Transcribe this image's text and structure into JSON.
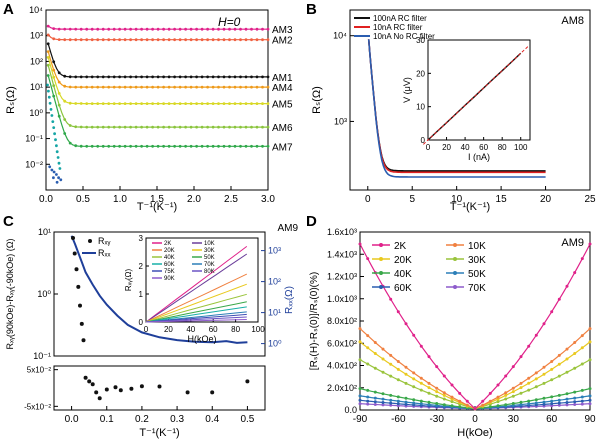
{
  "chart_data": [
    {
      "panel": "A",
      "type": "scatter",
      "annotation": "H=0",
      "xlabel": "T⁻¹(K⁻¹)",
      "ylabel": "Rₛ(Ω)",
      "xlim": [
        0,
        3
      ],
      "ylim_log10": [
        -3,
        4
      ],
      "yscale": "log",
      "xticks": [
        0.0,
        0.5,
        1.0,
        1.5,
        2.0,
        2.5,
        3.0
      ],
      "xtick_labels": [
        "0.0",
        "0.5",
        "1.0",
        "1.5",
        "2.0",
        "2.5",
        "3.0"
      ],
      "yticks_log10": [
        -2,
        -1,
        0,
        1,
        2,
        3,
        4
      ],
      "ytick_labels": [
        "10⁻²",
        "10⁻¹",
        "10⁰",
        "10¹",
        "10²",
        "10³",
        "10⁴"
      ],
      "series": [
        {
          "name": "AM3",
          "color": "#e0218a",
          "plateau": 1800,
          "peak": 3000
        },
        {
          "name": "AM2",
          "color": "#f06040",
          "plateau": 700,
          "peak": 1500
        },
        {
          "name": "AM1",
          "color": "#111111",
          "plateau": 25,
          "peak": 1000
        },
        {
          "name": "AM4",
          "color": "#ee9a1a",
          "plateau": 10,
          "peak": 500
        },
        {
          "name": "AM5",
          "color": "#d8d826",
          "plateau": 2.3,
          "peak": 300
        },
        {
          "name": "AM6",
          "color": "#8ac43c",
          "plateau": 0.28,
          "peak": 150
        },
        {
          "name": "AM7",
          "color": "#2fa84a",
          "plateau": 0.05,
          "peak": 60
        }
      ],
      "extra_series": [
        {
          "color": "#16a5a5",
          "description": "cyan steep drop"
        },
        {
          "color": "#2a5db0",
          "description": "blue points near zero"
        }
      ]
    },
    {
      "panel": "B",
      "type": "line",
      "annotation": "AM8",
      "xlabel": "T⁻¹(K⁻¹)",
      "ylabel": "Rₛ(Ω)",
      "xlim": [
        -2,
        25
      ],
      "ylim_log10": [
        2.2,
        4.3
      ],
      "yscale": "log",
      "xticks": [
        0,
        5,
        10,
        15,
        20,
        25
      ],
      "yticks_log10": [
        3,
        4
      ],
      "ytick_labels": [
        "10³",
        "10⁴"
      ],
      "legend_position": "top-left",
      "series": [
        {
          "name": "100nA RC filter",
          "color": "#111111",
          "plateau": 265
        },
        {
          "name": "10nA RC filter",
          "color": "#e02020",
          "plateau": 255
        },
        {
          "name": "10nA No RC filter",
          "color": "#2a5db0",
          "plateau": 225
        }
      ],
      "inset": {
        "xlabel": "I (nA)",
        "ylabel": "V (μV)",
        "xlim": [
          0,
          110
        ],
        "ylim": [
          0,
          30
        ],
        "xticks": [
          0,
          20,
          40,
          60,
          80,
          100
        ],
        "yticks": [
          0,
          10,
          20,
          30
        ],
        "points": {
          "x": [
            0,
            10,
            20,
            30,
            40,
            50,
            60,
            70,
            80,
            90,
            100
          ],
          "y": [
            0,
            2.6,
            5.2,
            7.8,
            10.4,
            13.0,
            15.6,
            18.2,
            20.8,
            23.4,
            26.0
          ]
        },
        "fit_color": "#e02020"
      }
    },
    {
      "panel": "C",
      "type": "scatter",
      "annotation": "AM9",
      "xlabel": "T⁻¹(K⁻¹)",
      "ylabel_left": "Rₓᵧ(90kOe)-Rₓᵧ(-90kOe) (Ω)",
      "ylabel_right": "Rₓₓ(Ω)",
      "xlim": [
        -0.05,
        0.55
      ],
      "xticks": [
        0.0,
        0.1,
        0.2,
        0.3,
        0.4,
        0.5
      ],
      "left_ylim_log10": [
        -1,
        1
      ],
      "left_yticks_log10": [
        -1,
        0,
        1
      ],
      "left_ytick_labels": [
        "10⁻¹",
        "10⁰",
        "10¹"
      ],
      "right_ylim_log10": [
        -0.4,
        3.6
      ],
      "right_yticks_log10": [
        0,
        1,
        2,
        3
      ],
      "right_ytick_labels": [
        "10⁰",
        "10¹",
        "10²",
        "10³"
      ],
      "legend": [
        {
          "name": "Rₓᵧ",
          "marker": "dot",
          "color": "#111111"
        },
        {
          "name": "Rₓₓ",
          "marker": "line",
          "color": "#1f3f9a"
        }
      ],
      "rxy_points": {
        "x": [
          0.004,
          0.009,
          0.014,
          0.019,
          0.024,
          0.029,
          0.034
        ],
        "y": [
          8.0,
          4.5,
          2.5,
          1.3,
          0.65,
          0.33,
          0.18
        ]
      },
      "rxx_curve": {
        "x": [
          0.0,
          0.01,
          0.02,
          0.03,
          0.04,
          0.06,
          0.08,
          0.1,
          0.13,
          0.16,
          0.2,
          0.25,
          0.3,
          0.35,
          0.4,
          0.44,
          0.47,
          0.5
        ],
        "y": [
          3000,
          1600,
          800,
          400,
          200,
          80,
          35,
          18,
          8,
          4,
          2.3,
          1.6,
          1.3,
          1.15,
          1.1,
          1.2,
          1.05,
          1.1
        ]
      },
      "bottom_panel": {
        "ylim": [
          -0.06,
          0.06
        ],
        "yticks": [
          -0.05,
          0.05
        ],
        "ytick_labels": [
          "-5x10⁻²",
          "5x10⁻²"
        ],
        "points": {
          "x": [
            0.04,
            0.05,
            0.06,
            0.07,
            0.08,
            0.1,
            0.125,
            0.14,
            0.17,
            0.2,
            0.25,
            0.33,
            0.4,
            0.5
          ],
          "y": [
            0.028,
            0.018,
            0.01,
            -0.012,
            -0.028,
            -0.004,
            0.002,
            -0.006,
            -0.002,
            0.005,
            0.004,
            -0.012,
            -0.012,
            0.018
          ]
        }
      },
      "inset": {
        "xlabel": "H(kOe)",
        "ylabel": "Rₓᵧ(Ω)",
        "xlim": [
          0,
          100
        ],
        "ylim": [
          0,
          3
        ],
        "xticks": [
          0,
          20,
          40,
          60,
          80,
          100
        ],
        "yticks": [
          0,
          1,
          2,
          3
        ],
        "series": [
          {
            "name": "2K",
            "color": "#e0218a",
            "slope": 0.03
          },
          {
            "name": "10K",
            "color": "#6a3d9a",
            "slope": 0.027
          },
          {
            "name": "20K",
            "color": "#f08040",
            "slope": 0.019
          },
          {
            "name": "30K",
            "color": "#e9c91f",
            "slope": 0.015
          },
          {
            "name": "40K",
            "color": "#9ac43c",
            "slope": 0.011
          },
          {
            "name": "50K",
            "color": "#3aa84a",
            "slope": 0.008
          },
          {
            "name": "60K",
            "color": "#18b0a8",
            "slope": 0.006
          },
          {
            "name": "70K",
            "color": "#2c7fb8",
            "slope": 0.004
          },
          {
            "name": "75K",
            "color": "#3f4fb5",
            "slope": 0.003
          },
          {
            "name": "80K",
            "color": "#6b54c4",
            "slope": 0.002
          },
          {
            "name": "90K",
            "color": "#8e5ccc",
            "slope": 0.001
          }
        ]
      }
    },
    {
      "panel": "D",
      "type": "line",
      "annotation": "AM9",
      "xlabel": "H(kOe)",
      "ylabel": "[Rₛ(H)-Rₛ(0)]/Rₛ(0)(%)",
      "xlim": [
        -90,
        90
      ],
      "ylim": [
        0,
        1600
      ],
      "xticks": [
        -90,
        -60,
        -30,
        0,
        30,
        60,
        90
      ],
      "yticks": [
        0,
        200,
        400,
        600,
        800,
        1000,
        1200,
        1400,
        1600
      ],
      "ytick_labels": [
        "0.0",
        "2.0x10²",
        "4.0x10²",
        "6.0x10²",
        "8.0x10²",
        "1.0x10³",
        "1.2x10³",
        "1.4x10³",
        "1.6x10³"
      ],
      "series": [
        {
          "name": "2K",
          "color": "#e0218a",
          "max": 1480
        },
        {
          "name": "10K",
          "color": "#f08040",
          "max": 720
        },
        {
          "name": "20K",
          "color": "#e9c91f",
          "max": 600
        },
        {
          "name": "30K",
          "color": "#9ac43c",
          "max": 440
        },
        {
          "name": "40K",
          "color": "#3aa84a",
          "max": 180
        },
        {
          "name": "50K",
          "color": "#2c7fb8",
          "max": 115
        },
        {
          "name": "60K",
          "color": "#2a5db0",
          "max": 75
        },
        {
          "name": "70K",
          "color": "#8e5ccc",
          "max": 45
        }
      ]
    }
  ],
  "panel_labels": [
    "A",
    "B",
    "C",
    "D"
  ]
}
